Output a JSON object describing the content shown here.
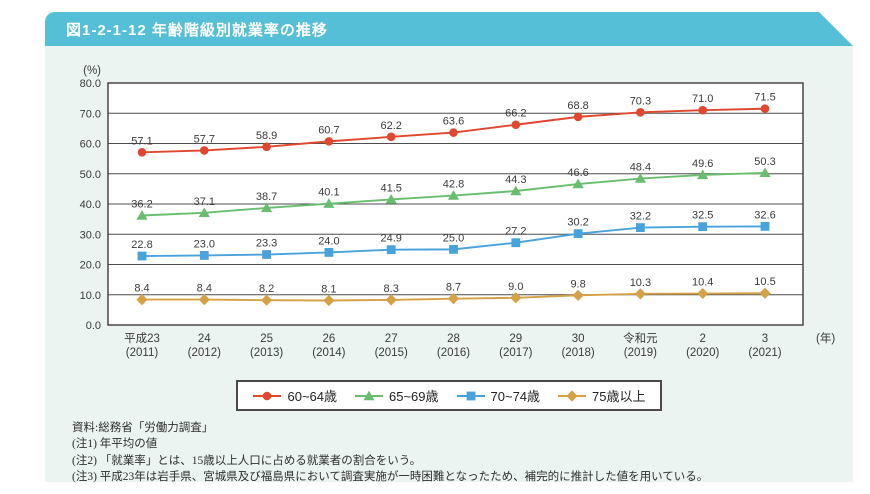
{
  "header": {
    "title": "図1-2-1-12 年齢階級別就業率の推移",
    "bar_color": "#54BFD6",
    "text_color": "#ffffff"
  },
  "panel": {
    "bg_color": "#EBF4F1"
  },
  "chart_data": {
    "type": "line",
    "title": "年齢階級別就業率の推移",
    "unit_y": "(%)",
    "unit_x": "(年)",
    "ylim": [
      0,
      80
    ],
    "ytick_step": 10,
    "grid": true,
    "legend_position": "bottom",
    "plot_bg": "#ffffff",
    "grid_color": "#4d4d4d",
    "border_color": "#3b3b3b",
    "label_color": "#3b3b3b",
    "categories_era": [
      "平成23",
      "24",
      "25",
      "26",
      "27",
      "28",
      "29",
      "30",
      "令和元",
      "2",
      "3"
    ],
    "categories_year": [
      "(2011)",
      "(2012)",
      "(2013)",
      "(2014)",
      "(2015)",
      "(2016)",
      "(2017)",
      "(2018)",
      "(2019)",
      "(2020)",
      "(2021)"
    ],
    "series": [
      {
        "name": "60~64歳",
        "marker": "circle",
        "color": "#E0472E",
        "values": [
          57.1,
          57.7,
          58.9,
          60.7,
          62.2,
          63.6,
          66.2,
          68.8,
          70.3,
          71.0,
          71.5
        ]
      },
      {
        "name": "65~69歳",
        "marker": "triangle",
        "color": "#68BE6E",
        "values": [
          36.2,
          37.1,
          38.7,
          40.1,
          41.5,
          42.8,
          44.3,
          46.6,
          48.4,
          49.6,
          50.3
        ]
      },
      {
        "name": "70~74歳",
        "marker": "square",
        "color": "#48A2DB",
        "values": [
          22.8,
          23.0,
          23.3,
          24.0,
          24.9,
          25.0,
          27.2,
          30.2,
          32.2,
          32.5,
          32.6
        ]
      },
      {
        "name": "75歳以上",
        "marker": "diamond",
        "color": "#D5A147",
        "values": [
          8.4,
          8.4,
          8.2,
          8.1,
          8.3,
          8.7,
          9.0,
          9.8,
          10.3,
          10.4,
          10.5
        ]
      }
    ]
  },
  "footnotes": {
    "source": "資料:総務省「労働力調査」",
    "notes": [
      "(注1) 年平均の値",
      "(注2) 「就業率」とは、15歳以上人口に占める就業者の割合をいう。",
      "(注3) 平成23年は岩手県、宮城県及び福島県において調査実施が一時困難となったため、補完的に推計した値を用いている。"
    ]
  }
}
